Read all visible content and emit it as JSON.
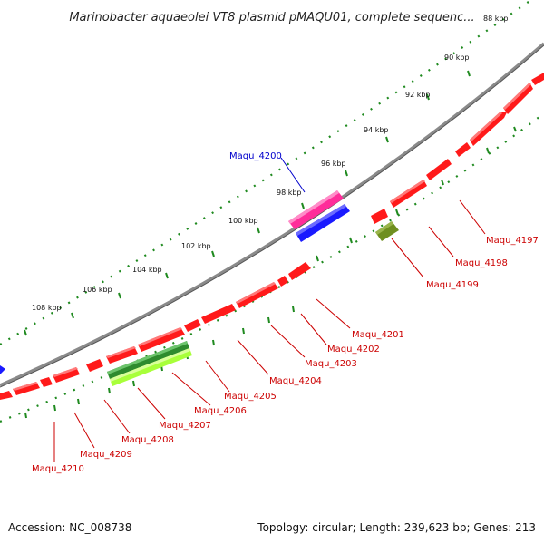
{
  "title": "Marinobacter aquaeolei VT8 plasmid pMAQU01, complete sequenc...",
  "footer": {
    "accession": "Accession: NC_008738",
    "topology": "Topology: circular; Length: 239,623 bp; Genes: 213"
  },
  "colors": {
    "backbone": "#8a8a8a",
    "forward_cds": "#ff1a1a",
    "reverse_cds": "#ff1a1a",
    "highlight_pink": "#ff2d9a",
    "highlight_blue": "#1a1aff",
    "green_dark": "#2e8b2e",
    "green_light": "#a8ff3a",
    "olive": "#6f8f1f",
    "tick_green": "#1f8a1f",
    "label_red": "#cc0000",
    "label_blue": "#0000cc"
  },
  "ticks": [
    {
      "label": "88 kbp"
    },
    {
      "label": "90 kbp"
    },
    {
      "label": "92 kbp"
    },
    {
      "label": "94 kbp"
    },
    {
      "label": "96 kbp"
    },
    {
      "label": "98 kbp"
    },
    {
      "label": "100 kbp"
    },
    {
      "label": "102 kbp"
    },
    {
      "label": "104 kbp"
    },
    {
      "label": "106 kbp"
    },
    {
      "label": "108 kbp"
    }
  ],
  "genes": [
    {
      "name": "Maqu_4197",
      "color": "red"
    },
    {
      "name": "Maqu_4198",
      "color": "red"
    },
    {
      "name": "Maqu_4199",
      "color": "red"
    },
    {
      "name": "Maqu_4200",
      "color": "blue"
    },
    {
      "name": "Maqu_4201",
      "color": "red"
    },
    {
      "name": "Maqu_4202",
      "color": "red"
    },
    {
      "name": "Maqu_4203",
      "color": "red"
    },
    {
      "name": "Maqu_4204",
      "color": "red"
    },
    {
      "name": "Maqu_4205",
      "color": "red"
    },
    {
      "name": "Maqu_4206",
      "color": "red"
    },
    {
      "name": "Maqu_4207",
      "color": "red"
    },
    {
      "name": "Maqu_4208",
      "color": "red"
    },
    {
      "name": "Maqu_4209",
      "color": "red"
    },
    {
      "name": "Maqu_4210",
      "color": "red"
    }
  ]
}
